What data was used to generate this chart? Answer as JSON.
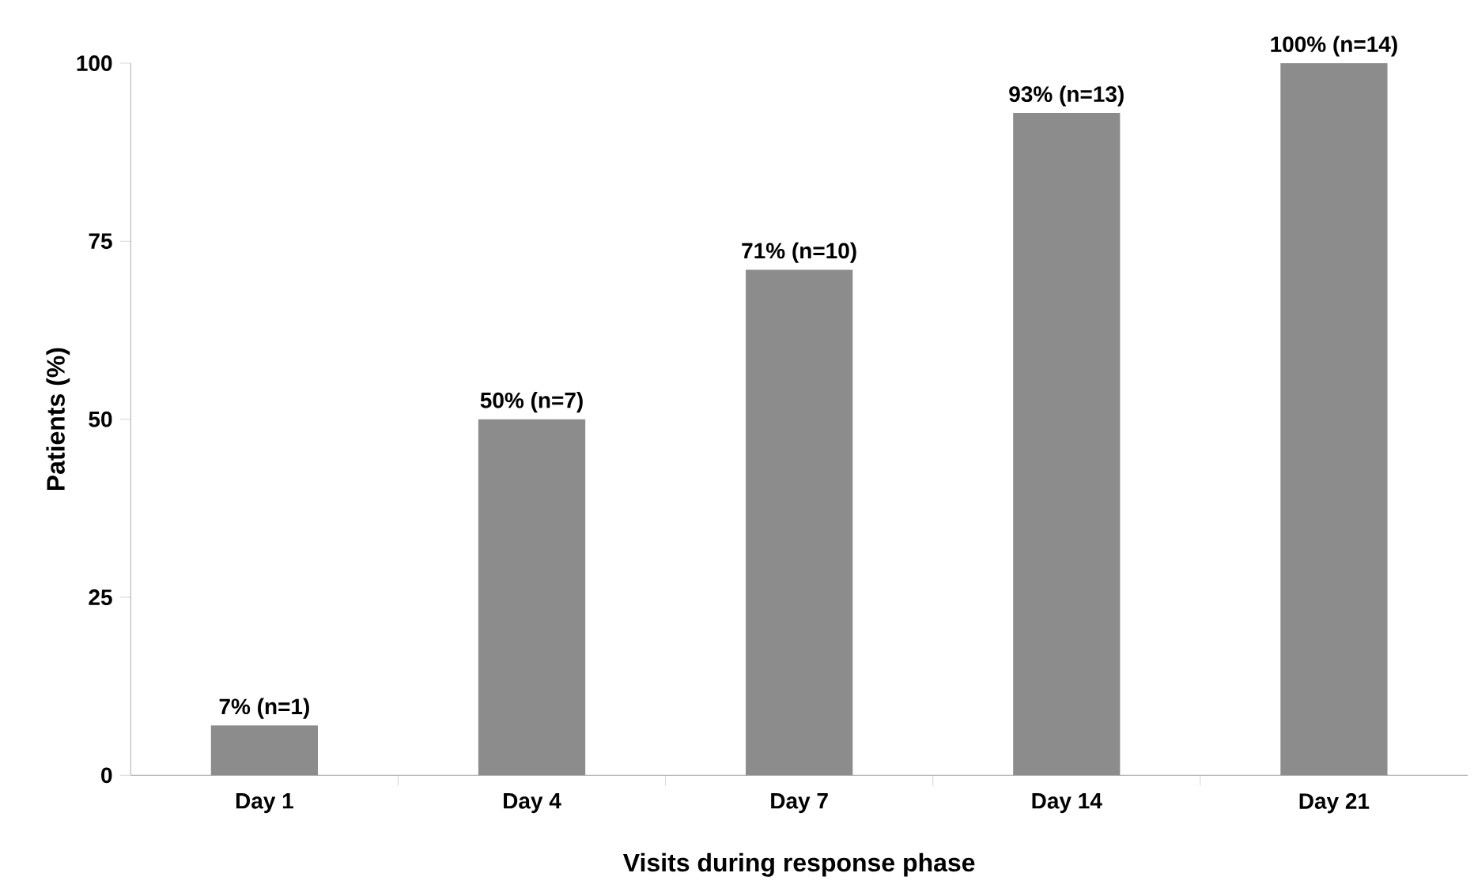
{
  "chart_data": {
    "type": "bar",
    "xlabel": "Visits during response phase",
    "ylabel": "Patients (%)",
    "categories": [
      "Day 1",
      "Day 4",
      "Day 7",
      "Day 14",
      "Day 21"
    ],
    "values": [
      7,
      50,
      71,
      93,
      100
    ],
    "value_labels": [
      "7% (n=1)",
      "50% (n=7)",
      "71% (n=10)",
      "93% (n=13)",
      "100% (n=14)"
    ],
    "color": "#8c8c8c",
    "ylim": [
      0,
      100
    ],
    "yticks": [
      0,
      25,
      50,
      75,
      100
    ],
    "grid": false
  }
}
